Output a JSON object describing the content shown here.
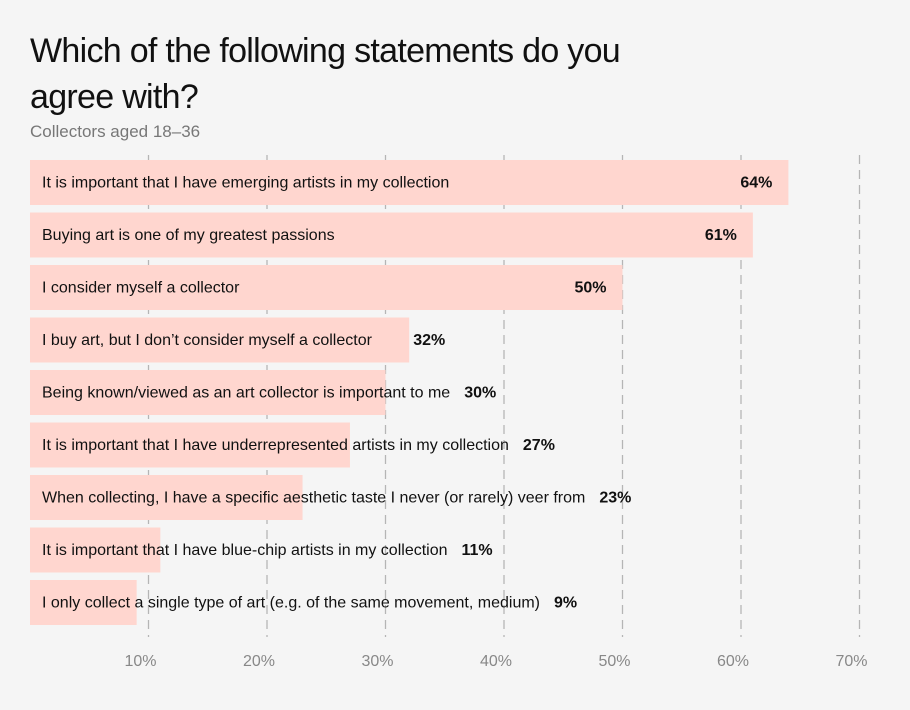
{
  "chart_data": {
    "type": "bar",
    "orientation": "horizontal",
    "title": "Which of the following statements do you agree with?",
    "subtitle": "Collectors aged 18–36",
    "categories": [
      "It is important that I have emerging artists in my collection",
      "Buying art is one of my greatest passions",
      "I consider myself a collector",
      "I buy art, but I don’t consider myself a collector",
      "Being known/viewed as an art collector is important to me",
      "It is important that I have underrepresented artists in my collection",
      "When collecting, I have a specific aesthetic taste I never (or rarely) veer from",
      "It is important that I have blue-chip artists in my collection",
      "I only collect a single type of art (e.g. of the same movement, medium)"
    ],
    "values": [
      64,
      61,
      50,
      32,
      30,
      27,
      23,
      11,
      9
    ],
    "value_labels": [
      "64%",
      "61%",
      "50%",
      "32%",
      "30%",
      "27%",
      "23%",
      "11%",
      "9%"
    ],
    "x_ticks": [
      10,
      20,
      30,
      40,
      50,
      60,
      70
    ],
    "x_tick_labels": [
      "10%",
      "20%",
      "30%",
      "40%",
      "50%",
      "60%",
      "70%"
    ],
    "xlim": [
      0,
      70
    ],
    "xlabel": "",
    "ylabel": "",
    "grid": "vertical dashed",
    "colors": {
      "bar": "#ffd6cf",
      "grid": "#b5b5b5",
      "background": "#f5f5f5"
    }
  }
}
